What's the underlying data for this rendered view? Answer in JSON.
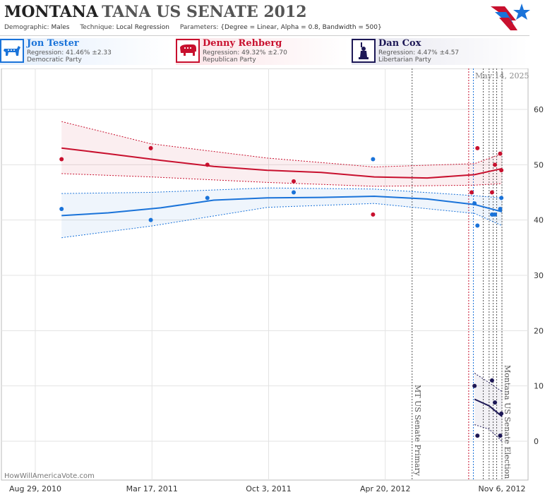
{
  "header": {
    "state": "MONTANA",
    "race": "TANA US SENATE 2012",
    "demographic_label": "Demographic:",
    "demographic": "Males",
    "technique_label": "Technique:",
    "technique": "Local Regression",
    "parameters_label": "Parameters:",
    "parameters": "{Degree = Linear, Alpha = 0.8, Bandwidth = 500}"
  },
  "candidates": [
    {
      "name": "Jon Tester",
      "regression": "Regression: 41.46% ±2.33",
      "party": "Democratic Party",
      "color": "#1a73d9",
      "icon": "donkey-icon"
    },
    {
      "name": "Denny Rehberg",
      "regression": "Regression: 49.32% ±2.70",
      "party": "Republican Party",
      "color": "#c8102e",
      "icon": "elephant-icon"
    },
    {
      "name": "Dan Cox",
      "regression": "Regression: 4.47% ±4.57",
      "party": "Libertarian Party",
      "color": "#1d1856",
      "icon": "statue-of-liberty-icon"
    }
  ],
  "footer": {
    "site": "HowWillAmericaVote.com",
    "date_stamp": "May 14, 2025"
  },
  "chart_data": {
    "type": "scatter",
    "x_ticks": [
      "Aug 29, 2010",
      "Mar 17, 2011",
      "Oct 3, 2011",
      "Apr 20, 2012",
      "Nov 6, 2012"
    ],
    "x_range": [
      "2010-08-29",
      "2012-11-06"
    ],
    "y_ticks": [
      0,
      10,
      20,
      30,
      40,
      50,
      60
    ],
    "ylim": [
      -5,
      68
    ],
    "grid": true,
    "annotations": [
      {
        "text": "MT US Senate Primary",
        "date": "2012-06-05"
      },
      {
        "text": "Montana US Senate Election",
        "date": "2012-11-06"
      }
    ],
    "series": [
      {
        "name": "Jon Tester",
        "color": "#1a73d9",
        "points": [
          [
            "2010-10-13",
            42
          ],
          [
            "2011-03-15",
            40
          ],
          [
            "2011-06-20",
            44
          ],
          [
            "2011-11-15",
            45
          ],
          [
            "2012-03-30",
            51
          ],
          [
            "2012-09-20",
            43
          ],
          [
            "2012-09-25",
            39
          ],
          [
            "2012-10-20",
            41
          ],
          [
            "2012-10-25",
            41
          ],
          [
            "2012-11-03",
            42
          ],
          [
            "2012-11-05",
            44
          ]
        ],
        "fit": [
          [
            "2010-10-13",
            40.8
          ],
          [
            "2011-01-01",
            41.3
          ],
          [
            "2011-04-01",
            42.2
          ],
          [
            "2011-07-01",
            43.6
          ],
          [
            "2011-10-01",
            44.0
          ],
          [
            "2012-01-01",
            44.1
          ],
          [
            "2012-04-01",
            44.3
          ],
          [
            "2012-07-01",
            43.8
          ],
          [
            "2012-09-20",
            42.8
          ],
          [
            "2012-11-06",
            41.5
          ]
        ],
        "upper": [
          [
            "2010-10-13",
            44.8
          ],
          [
            "2011-03-15",
            45.0
          ],
          [
            "2011-10-01",
            45.8
          ],
          [
            "2012-04-01",
            45.6
          ],
          [
            "2012-09-20",
            44.4
          ],
          [
            "2012-11-06",
            44.0
          ]
        ],
        "lower": [
          [
            "2010-10-13",
            36.8
          ],
          [
            "2011-03-15",
            38.9
          ],
          [
            "2011-10-01",
            42.3
          ],
          [
            "2012-04-01",
            43.0
          ],
          [
            "2012-09-20",
            41.2
          ],
          [
            "2012-11-06",
            39.0
          ]
        ]
      },
      {
        "name": "Denny Rehberg",
        "color": "#c8102e",
        "points": [
          [
            "2010-10-13",
            51
          ],
          [
            "2011-03-15",
            53
          ],
          [
            "2011-06-20",
            50
          ],
          [
            "2011-11-15",
            47
          ],
          [
            "2012-03-30",
            41
          ],
          [
            "2012-09-15",
            45
          ],
          [
            "2012-09-25",
            53
          ],
          [
            "2012-10-20",
            45
          ],
          [
            "2012-10-25",
            50
          ],
          [
            "2012-11-03",
            52
          ],
          [
            "2012-11-05",
            49
          ]
        ],
        "fit": [
          [
            "2010-10-13",
            53.0
          ],
          [
            "2011-01-01",
            52.0
          ],
          [
            "2011-04-01",
            50.8
          ],
          [
            "2011-07-01",
            49.7
          ],
          [
            "2011-10-01",
            49.0
          ],
          [
            "2012-01-01",
            48.6
          ],
          [
            "2012-04-01",
            47.8
          ],
          [
            "2012-07-01",
            47.6
          ],
          [
            "2012-09-20",
            48.2
          ],
          [
            "2012-11-06",
            49.3
          ]
        ],
        "upper": [
          [
            "2010-10-13",
            57.8
          ],
          [
            "2011-03-15",
            53.8
          ],
          [
            "2011-10-01",
            51.2
          ],
          [
            "2012-04-01",
            49.6
          ],
          [
            "2012-09-20",
            50.2
          ],
          [
            "2012-11-06",
            52.0
          ]
        ],
        "lower": [
          [
            "2010-10-13",
            48.4
          ],
          [
            "2011-03-15",
            47.8
          ],
          [
            "2011-10-01",
            46.8
          ],
          [
            "2012-04-01",
            46.1
          ],
          [
            "2012-09-20",
            46.3
          ],
          [
            "2012-11-06",
            46.6
          ]
        ]
      },
      {
        "name": "Dan Cox",
        "color": "#1d1856",
        "points": [
          [
            "2012-09-20",
            10
          ],
          [
            "2012-09-25",
            1
          ],
          [
            "2012-10-20",
            11
          ],
          [
            "2012-10-25",
            7
          ],
          [
            "2012-11-03",
            1
          ],
          [
            "2012-11-05",
            5
          ]
        ],
        "fit": [
          [
            "2012-09-20",
            7.6
          ],
          [
            "2012-10-15",
            6.4
          ],
          [
            "2012-11-06",
            4.5
          ]
        ],
        "upper": [
          [
            "2012-09-20",
            12.3
          ],
          [
            "2012-10-15",
            10.6
          ],
          [
            "2012-11-06",
            9.0
          ]
        ],
        "lower": [
          [
            "2012-09-20",
            3.0
          ],
          [
            "2012-10-15",
            2.2
          ],
          [
            "2012-11-06",
            0.0
          ]
        ]
      }
    ],
    "vertical_markers": [
      {
        "date": "2012-06-05",
        "color": "#555555"
      },
      {
        "date": "2012-09-10",
        "color": "#c8102e"
      },
      {
        "date": "2012-09-18",
        "color": "#1a73d9"
      },
      {
        "date": "2012-10-05",
        "color": "#555555"
      },
      {
        "date": "2012-10-15",
        "color": "#555555"
      },
      {
        "date": "2012-10-22",
        "color": "#555555"
      },
      {
        "date": "2012-10-28",
        "color": "#555555"
      },
      {
        "date": "2012-11-06",
        "color": "#555555"
      }
    ]
  }
}
